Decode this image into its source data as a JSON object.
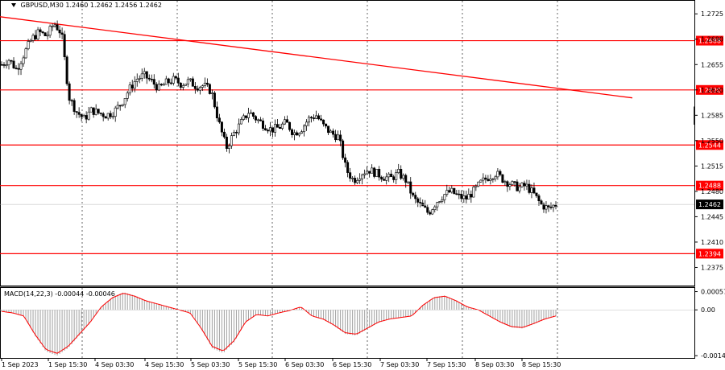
{
  "header": {
    "symbol_info": "GBPUSD,M30",
    "ohlc": "1.2460 1.2462 1.2456 1.2462"
  },
  "macd": {
    "label": "MACD(14,22,3) -0.00044 -0.00046",
    "y_ticks": [
      "0.00057",
      "0.00",
      "-0.00143"
    ]
  },
  "chart_data": {
    "type": "candlestick",
    "price_axis_ticks": [
      "1.2725",
      "1.2690",
      "1.2655",
      "1.2620",
      "1.2585",
      "1.2550",
      "1.2515",
      "1.2480",
      "1.2445",
      "1.2410",
      "1.2375"
    ],
    "x_tick_labels": [
      "1 Sep 2023",
      "1 Sep 15:30",
      "4 Sep 03:30",
      "4 Sep 15:30",
      "5 Sep 03:30",
      "5 Sep 15:30",
      "6 Sep 03:30",
      "6 Sep 15:30",
      "7 Sep 03:30",
      "7 Sep 15:30",
      "8 Sep 03:30",
      "8 Sep 15:30"
    ],
    "current_price": "1.2462",
    "levels": [
      "1.2688",
      "1.2620",
      "1.2544",
      "1.2488",
      "1.2394"
    ],
    "trendline": {
      "from": 1.2721,
      "to": 1.2609
    },
    "colors": {
      "level": "#ff0000",
      "candle": "#000000",
      "macd_signal": "#ff0000",
      "macd_hist": "#a0a0a0",
      "grid": "#000000"
    },
    "price_path": [
      1.2655,
      1.2662,
      1.2648,
      1.267,
      1.269,
      1.27,
      1.2694,
      1.2712,
      1.2698,
      1.261,
      1.259,
      1.258,
      1.2592,
      1.2588,
      1.2585,
      1.259,
      1.2602,
      1.262,
      1.2635,
      1.264,
      1.2632,
      1.2622,
      1.263,
      1.2634,
      1.2628,
      1.2632,
      1.2625,
      1.2626,
      1.2618,
      1.2575,
      1.254,
      1.256,
      1.2575,
      1.259,
      1.258,
      1.2572,
      1.2565,
      1.2568,
      1.2575,
      1.256,
      1.2566,
      1.258,
      1.2585,
      1.257,
      1.256,
      1.2555,
      1.251,
      1.2495,
      1.2505,
      1.251,
      1.2505,
      1.25,
      1.2498,
      1.2505,
      1.2495,
      1.247,
      1.246,
      1.245,
      1.2465,
      1.2475,
      1.248,
      1.2473,
      1.247,
      1.248,
      1.2492,
      1.25,
      1.2505,
      1.2496,
      1.249,
      1.2485,
      1.2488,
      1.2477,
      1.2462,
      1.2456,
      1.2462
    ],
    "macd_hist": [
      -5e-05,
      -0.0001,
      -0.0002,
      -0.0008,
      -0.0013,
      -0.00143,
      -0.0012,
      -0.0008,
      -0.0004,
      0.0001,
      0.0004,
      0.00055,
      0.00045,
      0.0003,
      0.0002,
      0.0001,
      0.0,
      -0.0001,
      -0.0006,
      -0.0012,
      -0.00135,
      -0.001,
      -0.0004,
      -0.00015,
      -0.0002,
      -0.0001,
      -2e-05,
      0.0001,
      -0.0002,
      -0.0003,
      -0.0005,
      -0.00075,
      -0.0008,
      -0.0006,
      -0.0004,
      -0.0003,
      -0.00025,
      -0.0002,
      0.00015,
      0.0004,
      0.00045,
      0.0003,
      0.0001,
      0.0,
      -0.0002,
      -0.0004,
      -0.00055,
      -0.00058,
      -0.00045,
      -0.0003,
      -0.0002
    ]
  }
}
